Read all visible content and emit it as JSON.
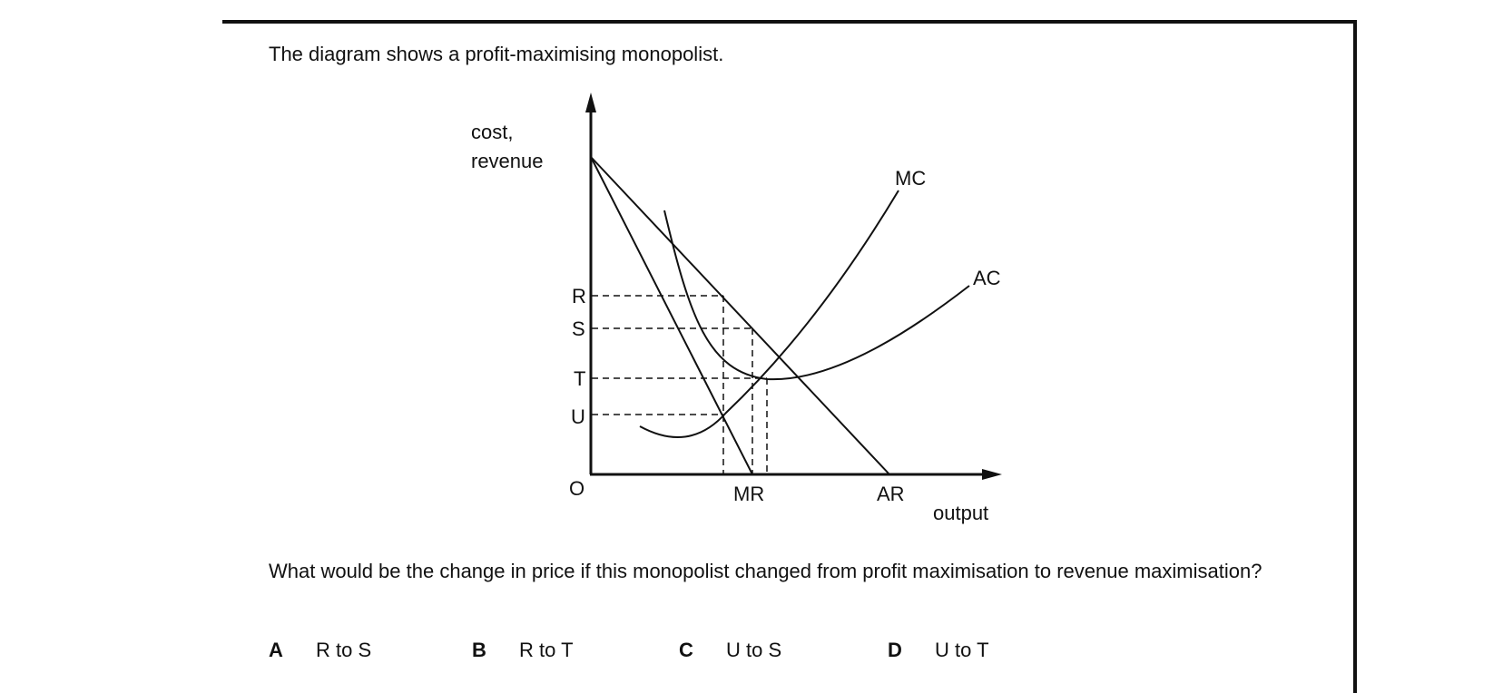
{
  "intro": "The diagram shows a profit-maximising monopolist.",
  "diagram": {
    "y_axis_label_line1": "cost,",
    "y_axis_label_line2": "revenue",
    "x_axis_label": "output",
    "origin_label": "O",
    "price_levels": [
      "R",
      "S",
      "T",
      "U"
    ],
    "curves": {
      "mc": "MC",
      "ac": "AC",
      "mr": "MR",
      "ar": "AR"
    }
  },
  "question": "What would be the change in price if this monopolist changed from profit maximisation to revenue maximisation?",
  "options": [
    {
      "letter": "A",
      "text": "R to S"
    },
    {
      "letter": "B",
      "text": "R to T"
    },
    {
      "letter": "C",
      "text": "U to S"
    },
    {
      "letter": "D",
      "text": "U to T"
    }
  ]
}
